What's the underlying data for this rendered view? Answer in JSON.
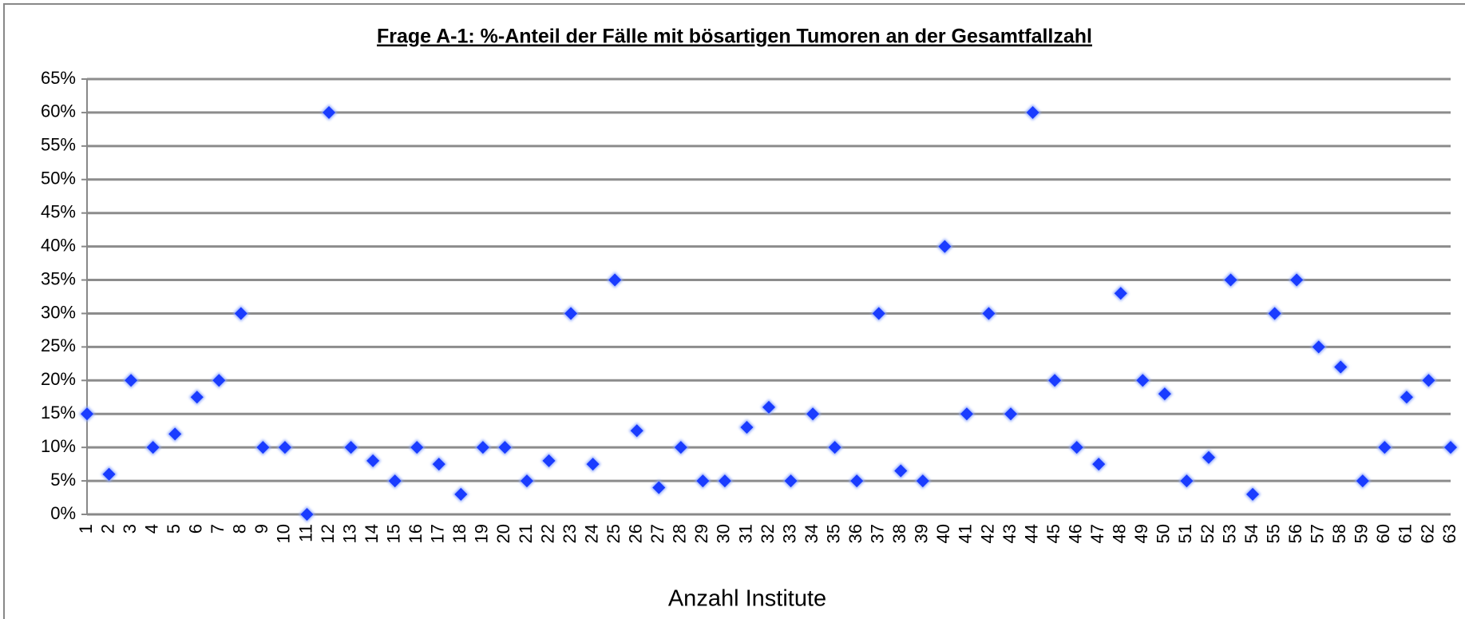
{
  "chart_data": {
    "type": "scatter",
    "title": "Frage A-1: %-Anteil der Fälle mit bösartigen Tumoren an der Gesamtfallzahl",
    "x_label": "Anzahl Institute",
    "categories": [
      "1",
      "2",
      "3",
      "4",
      "5",
      "6",
      "7",
      "8",
      "9",
      "10",
      "11",
      "12",
      "13",
      "14",
      "15",
      "16",
      "17",
      "18",
      "19",
      "20",
      "21",
      "22",
      "23",
      "24",
      "25",
      "26",
      "27",
      "28",
      "29",
      "30",
      "31",
      "32",
      "33",
      "34",
      "35",
      "36",
      "37",
      "38",
      "39",
      "40",
      "41",
      "42",
      "43",
      "44",
      "45",
      "46",
      "47",
      "48",
      "49",
      "50",
      "51",
      "52",
      "53",
      "54",
      "55",
      "56",
      "57",
      "58",
      "59",
      "60",
      "61",
      "62",
      "63"
    ],
    "values": [
      15,
      6,
      20,
      10,
      12,
      17.5,
      20,
      30,
      10,
      10,
      0,
      60,
      10,
      8,
      5,
      10,
      7.5,
      3,
      10,
      10,
      5,
      8,
      30,
      7.5,
      35,
      12.5,
      4,
      10,
      5,
      5,
      13,
      16,
      5,
      15,
      10,
      5,
      30,
      6.5,
      5,
      40,
      15,
      30,
      15,
      60,
      20,
      10,
      7.5,
      33,
      20,
      18,
      5,
      8.5,
      35,
      3,
      30,
      35,
      25,
      22,
      5,
      10,
      17.5,
      20,
      10
    ],
    "color": "#1a3cff",
    "ylim": [
      0,
      65
    ],
    "yticks": [
      {
        "value": 0,
        "label": "0%"
      },
      {
        "value": 5,
        "label": "5%"
      },
      {
        "value": 10,
        "label": "10%"
      },
      {
        "value": 15,
        "label": "15%"
      },
      {
        "value": 20,
        "label": "20%"
      },
      {
        "value": 25,
        "label": "25%"
      },
      {
        "value": 30,
        "label": "30%"
      },
      {
        "value": 35,
        "label": "35%"
      },
      {
        "value": 40,
        "label": "40%"
      },
      {
        "value": 45,
        "label": "45%"
      },
      {
        "value": 50,
        "label": "50%"
      },
      {
        "value": 55,
        "label": "55%"
      },
      {
        "value": 60,
        "label": "60%"
      },
      {
        "value": 65,
        "label": "65%"
      }
    ],
    "grid": true
  }
}
